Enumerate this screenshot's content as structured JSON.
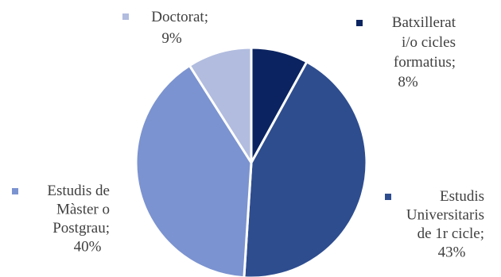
{
  "chart_data": {
    "type": "pie",
    "title": "",
    "slices": [
      {
        "name": "Batxillerat i/o cicles formatius",
        "label_lines": [
          "Batxillerat",
          "i/o cicles",
          "formatius;",
          "8%"
        ],
        "value": 8,
        "color": "#0b2461"
      },
      {
        "name": "Estudis Universitaris de 1r cicle",
        "label_lines": [
          "Estudis",
          "Universitaris",
          "de 1r cicle;",
          "43%"
        ],
        "value": 43,
        "color": "#2e4d8f"
      },
      {
        "name": "Estudis de Màster o Postgrau",
        "label_lines": [
          "Estudis de",
          "Màster o",
          "Postgrau;",
          "40%"
        ],
        "value": 40,
        "color": "#7b93d0"
      },
      {
        "name": "Doctorat",
        "label_lines": [
          "Doctorat;",
          "9%"
        ],
        "value": 9,
        "color": "#b1bcdf"
      }
    ],
    "start_angle_deg": 0,
    "direction": "clockwise",
    "legend": "none",
    "data_labels": "category; percent"
  }
}
